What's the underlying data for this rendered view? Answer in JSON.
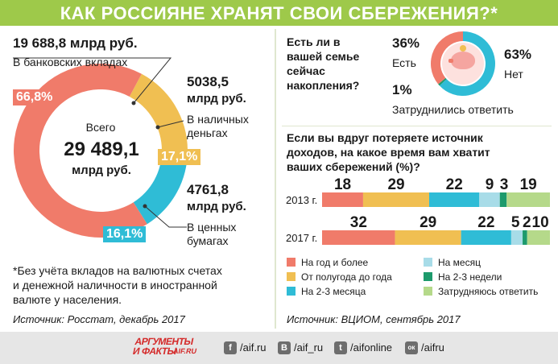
{
  "title": "КАК РОССИЯНЕ ХРАНЯТ СВОИ СБЕРЕЖЕНИЯ?*",
  "donut": {
    "center_label": "Всего",
    "center_value": "29 489,1",
    "center_unit": "млрд руб.",
    "segments": [
      {
        "value_text": "19 688,8 млрд руб.",
        "label": "В банковских вкладах",
        "percent_text": "66,8%",
        "percent": 66.8,
        "color": "#f07b6a"
      },
      {
        "value_text": "5038,5",
        "unit_text": "млрд руб.",
        "label_line1": "В наличных",
        "label_line2": "деньгах",
        "percent_text": "17,1%",
        "percent": 17.1,
        "color": "#f0bf52"
      },
      {
        "value_text": "4761,8",
        "unit_text": "млрд руб.",
        "label_line1": "В ценных",
        "label_line2": "бумагах",
        "percent_text": "16,1%",
        "percent": 16.1,
        "color": "#2fbcd6"
      }
    ]
  },
  "footnote": [
    "*Без учёта вкладов на валютных счетах",
    "и денежной наличности в иностранной",
    "валюте у населения."
  ],
  "source_left": "Источник: Росстат, декабрь 2017",
  "poll": {
    "question": [
      "Есть ли в",
      "вашей семье",
      "сейчас",
      "накопления?"
    ],
    "yes_percent": "36%",
    "yes_label": "Есть",
    "no_percent": "63%",
    "no_label": "Нет",
    "unsure_percent": "1%",
    "unsure_label": "Затруднились ответить",
    "values": [
      36,
      63,
      1
    ],
    "colors": [
      "#f07b6a",
      "#2fbcd6",
      "#1d9a6c"
    ]
  },
  "bars_question": [
    "Если вы вдруг потеряете источник",
    "доходов, на какое время вам хватит",
    "ваших сбережений (%)?"
  ],
  "source_right": "Источник: ВЦИОМ, сентябрь 2017",
  "chart_data": {
    "type": "bar",
    "orientation": "horizontal-stacked",
    "categories": [
      "2013 г.",
      "2017 г."
    ],
    "series": [
      {
        "name": "На год и более",
        "values": [
          18,
          32
        ],
        "color": "#f07b6a"
      },
      {
        "name": "От полугода до года",
        "values": [
          29,
          29
        ],
        "color": "#f0bf52"
      },
      {
        "name": "На 2-3 месяца",
        "values": [
          22,
          22
        ],
        "color": "#2fbcd6"
      },
      {
        "name": "На месяц",
        "values": [
          9,
          5
        ],
        "color": "#a8dce8"
      },
      {
        "name": "На 2-3 недели",
        "values": [
          3,
          2
        ],
        "color": "#1d9a6c"
      },
      {
        "name": "Затрудняюсь ответить",
        "values": [
          19,
          10
        ],
        "color": "#b5d98a"
      }
    ],
    "legend_order": [
      0,
      3,
      1,
      4,
      2,
      5
    ]
  },
  "footer": {
    "logo_top": "АРГУМЕНТЫ",
    "logo_bottom": "И ФАКТЫ",
    "logo_site": "AIF.RU",
    "links": [
      {
        "icon": "f",
        "text": "/aif.ru"
      },
      {
        "icon": "В",
        "text": "/aif_ru"
      },
      {
        "icon": "t",
        "text": "/aifonline"
      },
      {
        "icon": "ок",
        "text": "/aifru"
      }
    ]
  }
}
